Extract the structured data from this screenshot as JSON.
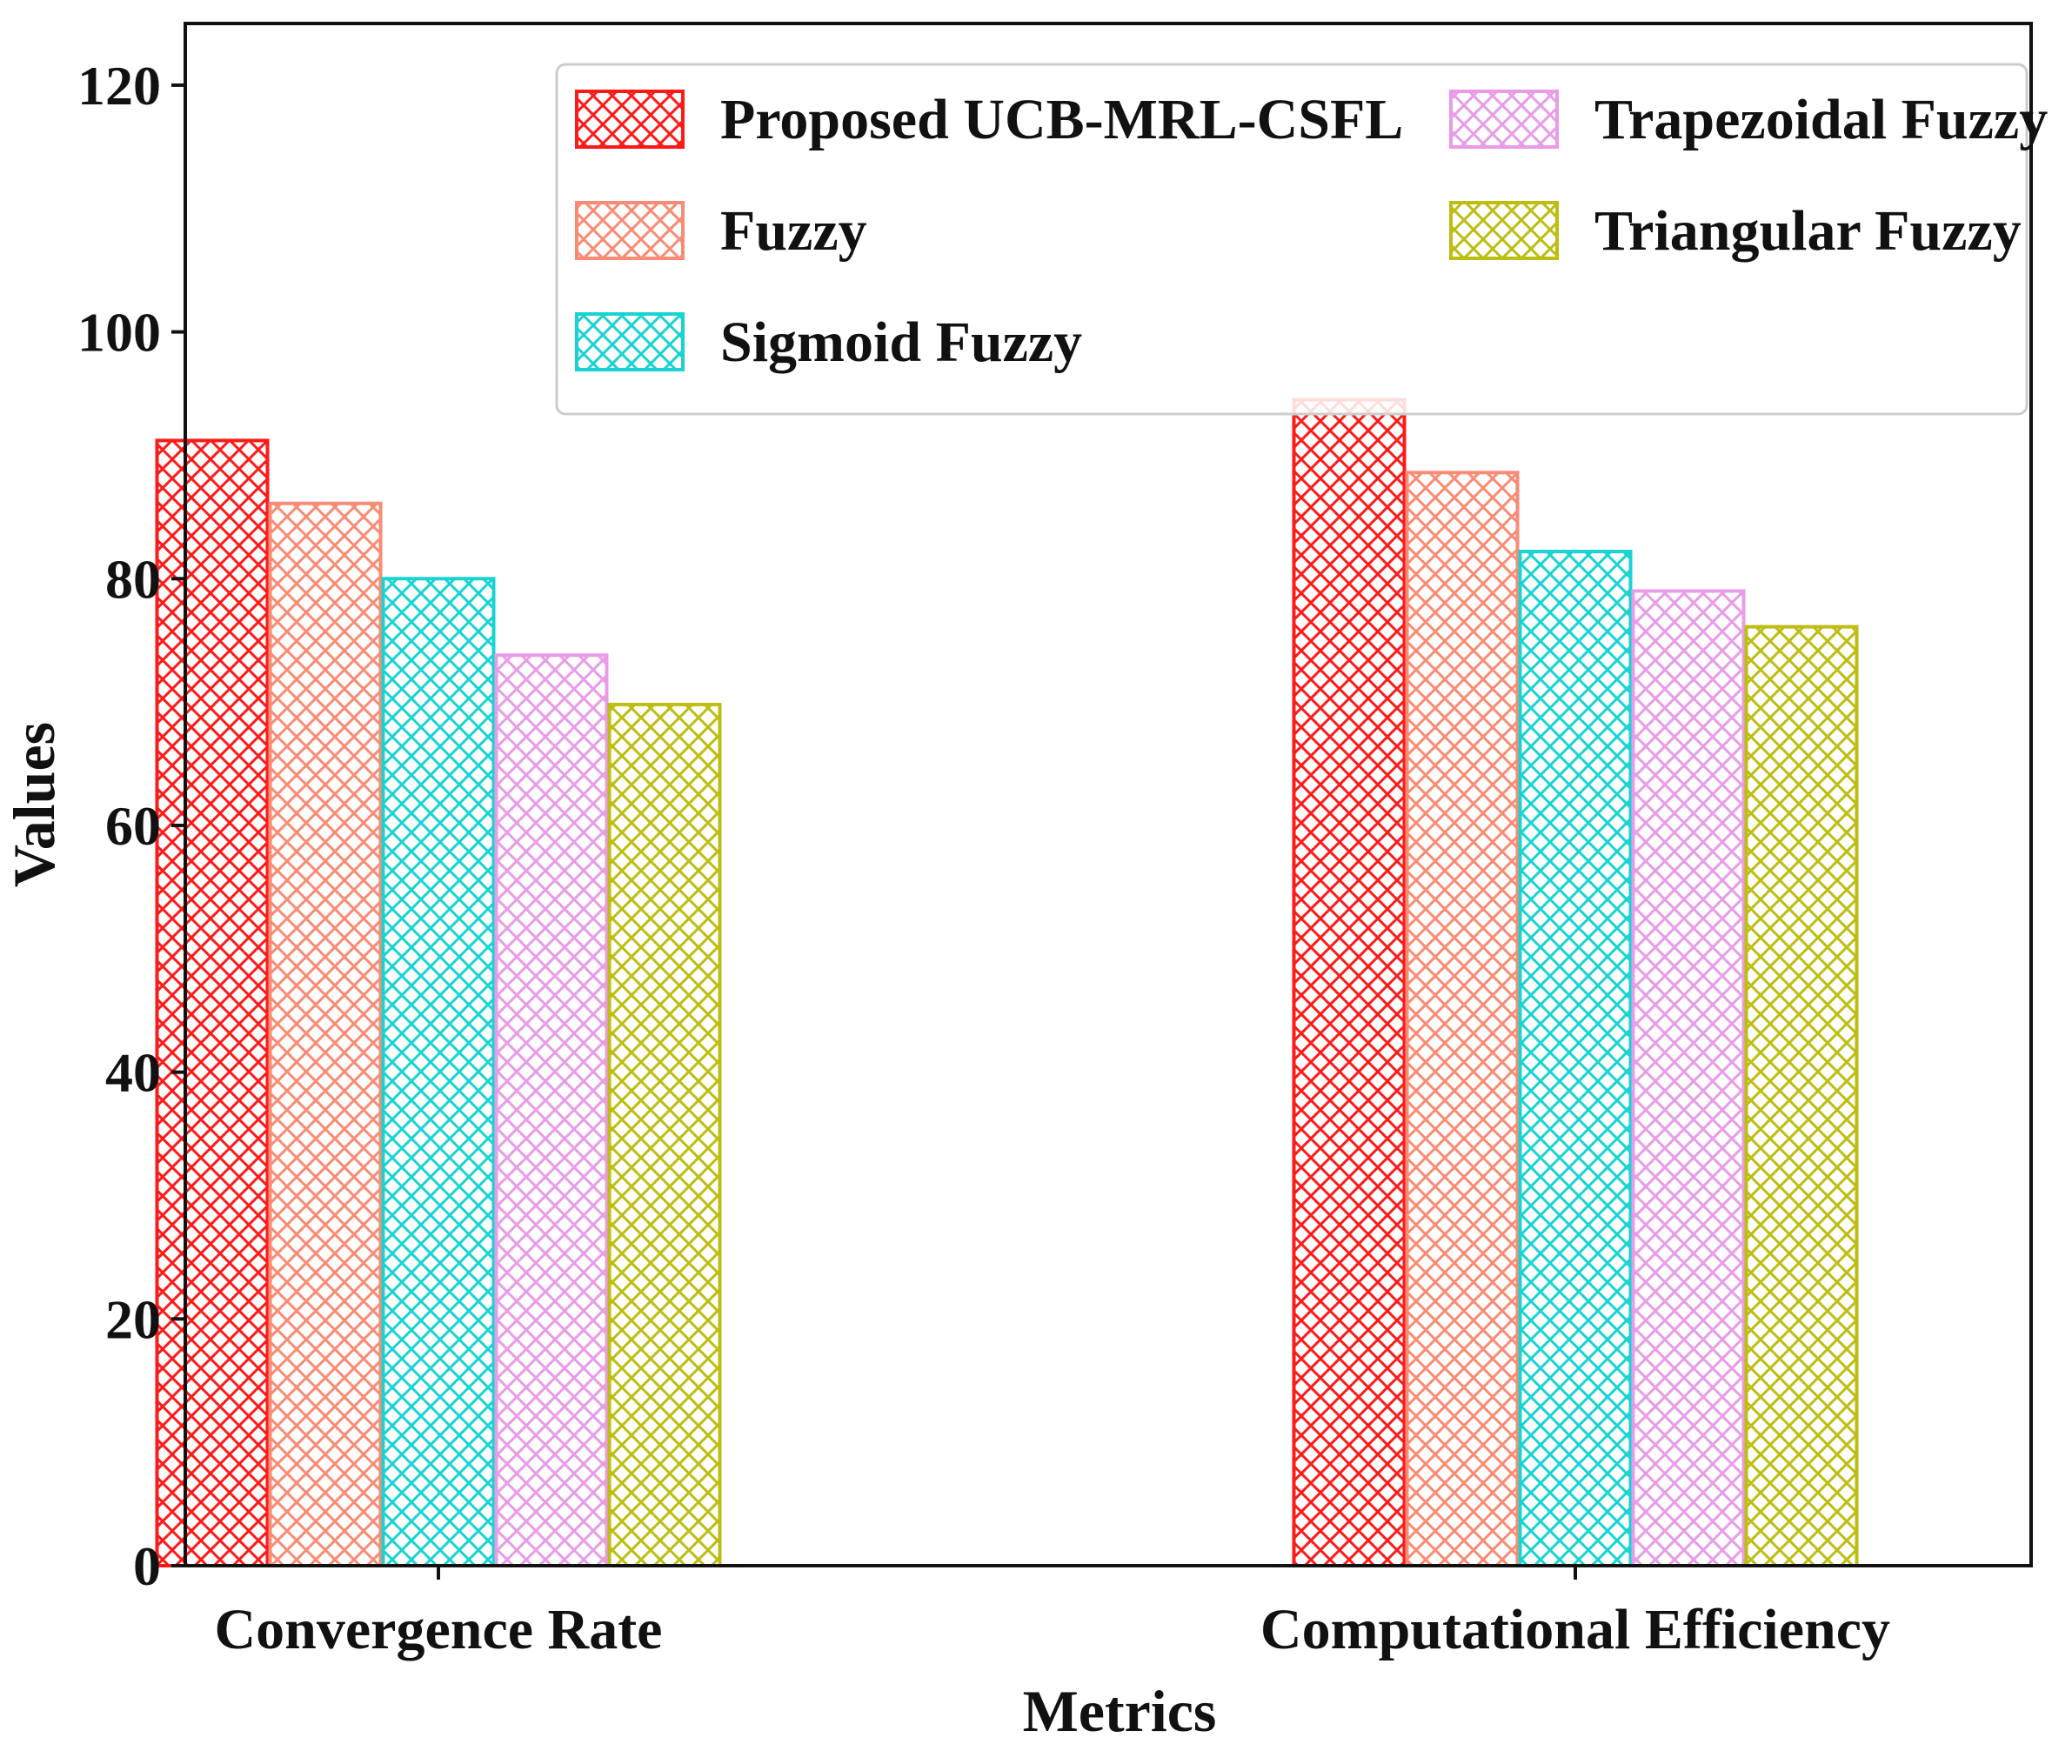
{
  "chart_data": {
    "type": "bar",
    "title": "",
    "xlabel": "Metrics",
    "ylabel": "Values",
    "ylim": [
      0,
      125
    ],
    "yticks": [
      0,
      20,
      40,
      60,
      80,
      100,
      120
    ],
    "ytick_labels": [
      "0",
      "20",
      "40",
      "60",
      "80",
      "100",
      "120"
    ],
    "grid": false,
    "legend_position": "top-right",
    "categories": [
      "Convergence Rate",
      "Computational Efficiency"
    ],
    "series": [
      {
        "name": "Proposed UCB-MRL-CSFL",
        "color": "#ff1a1a",
        "values": [
          91.2,
          94.5
        ]
      },
      {
        "name": "Fuzzy",
        "color": "#fa8b74",
        "values": [
          86.1,
          88.6
        ]
      },
      {
        "name": "Sigmoid Fuzzy",
        "color": "#19d3d3",
        "values": [
          80.0,
          82.2
        ]
      },
      {
        "name": "Trapezoidal Fuzzy",
        "color": "#e89ce8",
        "values": [
          73.8,
          79.0
        ]
      },
      {
        "name": "Triangular Fuzzy",
        "color": "#bdbd12",
        "values": [
          69.8,
          76.1
        ]
      }
    ]
  }
}
